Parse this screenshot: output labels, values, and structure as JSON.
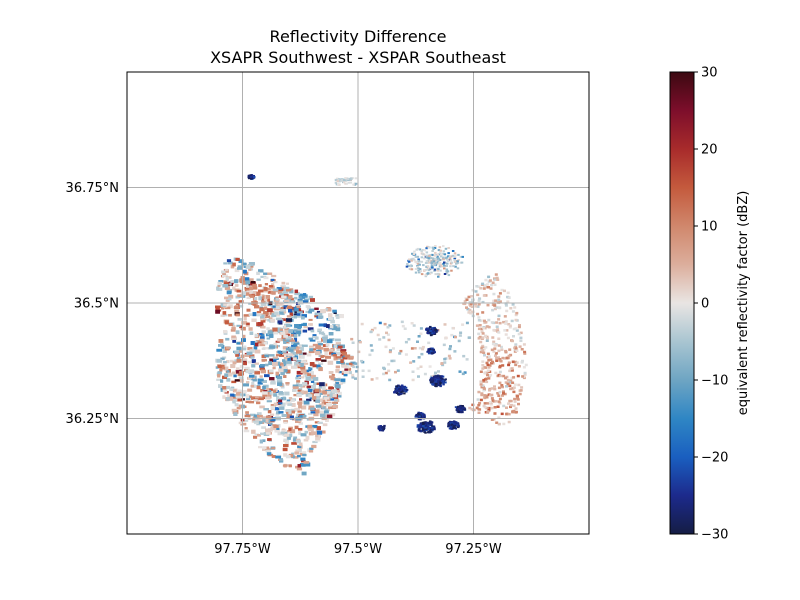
{
  "chart_data": {
    "type": "heatmap",
    "title_line1": "Reflectivity Difference",
    "title_line2": "XSAPR Southwest - XSPAR Southeast",
    "x_ticks": [
      {
        "value": -97.75,
        "label": "97.75°W"
      },
      {
        "value": -97.5,
        "label": "97.5°W"
      },
      {
        "value": -97.25,
        "label": "97.25°W"
      }
    ],
    "y_ticks": [
      {
        "value": 36.75,
        "label": "36.75°N"
      },
      {
        "value": 36.5,
        "label": "36.5°N"
      },
      {
        "value": 36.25,
        "label": "36.25°N"
      }
    ],
    "xlim": [
      -98.0,
      -97.0
    ],
    "ylim": [
      36.0,
      37.0
    ],
    "grid": true,
    "colorbar": {
      "label": "equivalent reflectivity factor (dBZ)",
      "range": [
        -30,
        30
      ],
      "ticks": [
        30,
        20,
        10,
        0,
        -10,
        -20,
        -30
      ],
      "tick_labels": [
        "30",
        "20",
        "10",
        "0",
        "−10",
        "−20",
        "−30"
      ],
      "colormap_stops": [
        {
          "value": -30,
          "color": "#151d44"
        },
        {
          "value": -25,
          "color": "#1c2a8c"
        },
        {
          "value": -20,
          "color": "#1a5fc0"
        },
        {
          "value": -15,
          "color": "#2f86c4"
        },
        {
          "value": -10,
          "color": "#6ea5c3"
        },
        {
          "value": -5,
          "color": "#a9c5d1"
        },
        {
          "value": 0,
          "color": "#e9e5e3"
        },
        {
          "value": 5,
          "color": "#dcae9c"
        },
        {
          "value": 10,
          "color": "#d0876c"
        },
        {
          "value": 15,
          "color": "#c45a3d"
        },
        {
          "value": 20,
          "color": "#a82b2b"
        },
        {
          "value": 25,
          "color": "#7d0e2b"
        },
        {
          "value": 30,
          "color": "#3c0911"
        }
      ]
    },
    "regions": [
      {
        "name": "main-western-storm",
        "lon": -97.65,
        "lat": 36.5,
        "dominant": "mixed"
      },
      {
        "name": "northeast-cells",
        "lon": -97.33,
        "lat": 36.6,
        "dominant": "near-zero"
      },
      {
        "name": "southern-cells",
        "lon": -97.35,
        "lat": 36.27,
        "dominant": "negative"
      }
    ]
  }
}
